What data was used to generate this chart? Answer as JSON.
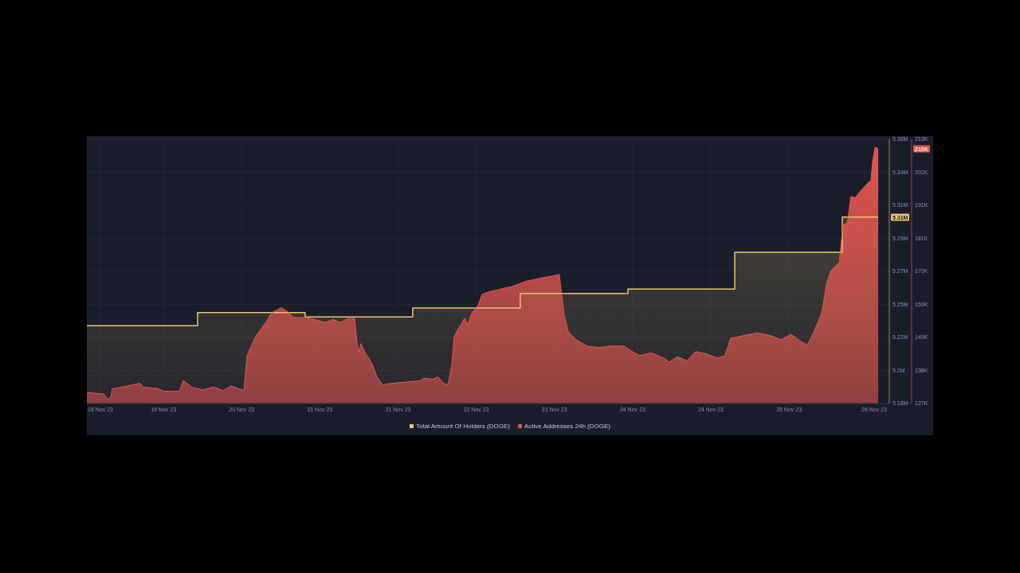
{
  "chart_data": {
    "type": "area",
    "xlim": [
      "--11-18T17:00",
      "--11-26T17:05"
    ],
    "xticks": [
      {
        "value": "--11-18T20:15",
        "label": "18 Nov 23"
      },
      {
        "value": "--11-19T11:20",
        "label": "19 Nov 23"
      },
      {
        "value": "--11-20T06:03",
        "label": "20 Nov 23"
      },
      {
        "value": "--11-21T00:46",
        "label": "21 Nov 23"
      },
      {
        "value": "--11-21T19:29",
        "label": "21 Nov 23"
      },
      {
        "value": "--11-22T14:12",
        "label": "22 Nov 23"
      },
      {
        "value": "--11-23T08:55",
        "label": "23 Nov 23"
      },
      {
        "value": "--11-24T03:38",
        "label": "24 Nov 23"
      },
      {
        "value": "--11-24T22:21",
        "label": "24 Nov 23"
      },
      {
        "value": "--11-25T17:04",
        "label": "25 Nov 23"
      },
      {
        "value": "--11-26T13:27",
        "label": "26 Nov 23"
      }
    ],
    "ylim": [
      5180000,
      5360000
    ],
    "yticks": [
      {
        "value": 5180000,
        "label": "5.18M"
      },
      {
        "value": 5202500,
        "label": "5.2M"
      },
      {
        "value": 5225000,
        "label": "5.22M"
      },
      {
        "value": 5247500,
        "label": "5.25M"
      },
      {
        "value": 5270000,
        "label": "5.27M"
      },
      {
        "value": 5292500,
        "label": "5.29M"
      },
      {
        "value": 5315000,
        "label": "5.31M"
      },
      {
        "value": 5337500,
        "label": "5.34M"
      },
      {
        "value": 5360000,
        "label": "5.36M"
      }
    ],
    "y2lim": [
      127000,
      213000
    ],
    "y2ticks": [
      {
        "value": 127000,
        "label": "127K"
      },
      {
        "value": 137750,
        "label": "138K"
      },
      {
        "value": 148500,
        "label": "149K"
      },
      {
        "value": 159250,
        "label": "159K"
      },
      {
        "value": 170000,
        "label": "170K"
      },
      {
        "value": 180750,
        "label": "181K"
      },
      {
        "value": 191500,
        "label": "191K"
      },
      {
        "value": 202250,
        "label": "202K"
      },
      {
        "value": 213000,
        "label": "213K"
      }
    ],
    "series": [
      {
        "name": "Total Amount Of Holders (DOGE)",
        "color": "#e9c46a",
        "x": [
          "--11-18T17:00",
          "--11-19T19:30",
          "--11-19T19:30",
          "--11-20T21:15",
          "--11-20T21:15",
          "--11-21T23:00",
          "--11-21T23:00",
          "--11-23T00:45",
          "--11-23T00:45",
          "--11-24T02:30",
          "--11-24T02:30",
          "--11-25T04:05",
          "--11-25T04:05",
          "--11-26T05:50",
          "--11-26T05:50",
          "--11-26T14:25"
        ],
        "values": [
          5233000,
          5233000,
          5242000,
          5242000,
          5239000,
          5239000,
          5245000,
          5245000,
          5255000,
          5255000,
          5258000,
          5258000,
          5283000,
          5283000,
          5307000,
          5307000
        ]
      },
      {
        "name": "Active Addresses 24h (DOGE)",
        "axis": "y2",
        "color": "#e0564f",
        "x": [
          "--11-18T17:00",
          "--11-18T21:00",
          "--11-18T22:00",
          "--11-18T22:45",
          "--11-18T23:05",
          "--11-19T02:45",
          "--11-19T05:45",
          "--11-19T06:30",
          "--11-19T10:00",
          "--11-19T11:20",
          "--11-19T15:10",
          "--11-19T16:05",
          "--11-19T18:10",
          "--11-19T20:50",
          "--11-19T23:20",
          "--11-20T01:35",
          "--11-20T03:30",
          "--11-20T06:35",
          "--11-20T07:20",
          "--11-20T08:30",
          "--11-20T09:25",
          "--11-20T10:45",
          "--11-20T12:05",
          "--11-20T13:15",
          "--11-20T15:30",
          "--11-20T17:05",
          "--11-20T18:25",
          "--11-20T21:40",
          "--11-20T23:35",
          "--11-21T02:00",
          "--11-21T03:55",
          "--11-21T05:50",
          "--11-21T07:20",
          "--11-21T09:05",
          "--11-21T09:40",
          "--11-21T10:00",
          "--11-21T10:35",
          "--11-21T11:35",
          "--11-21T13:15",
          "--11-21T14:25",
          "--11-21T15:45",
          "--11-21T18:15",
          "--11-21T21:30",
          "--11-22T00:45",
          "--11-22T01:40",
          "--11-22T03:45",
          "--11-22T05:05",
          "--11-22T06:25",
          "--11-22T07:25",
          "--11-22T08:20",
          "--11-22T08:55",
          "--11-22T09:55",
          "--11-22T11:25",
          "--11-22T12:10",
          "--11-22T13:10",
          "--11-22T14:40",
          "--11-22T15:35",
          "--11-22T17:10",
          "--11-22T19:50",
          "--11-22T22:50",
          "--11-23T02:05",
          "--11-23T05:20",
          "--11-23T08:25",
          "--11-23T10:05",
          "--11-23T10:40",
          "--11-23T11:15",
          "--11-23T12:15",
          "--11-23T14:05",
          "--11-23T16:45",
          "--11-23T19:15",
          "--11-23T22:30",
          "--11-24T01:35",
          "--11-24T03:30",
          "--11-24T05:25",
          "--11-24T08:05",
          "--11-24T11:05",
          "--11-24T12:25",
          "--11-24T14:20",
          "--11-24T16:40",
          "--11-24T18:45",
          "--11-24T21:25",
          "--11-24T23:55",
          "--11-25T01:45",
          "--11-25T03:05",
          "--11-25T06:10",
          "--11-25T09:25",
          "--11-25T12:40",
          "--11-25T15:10",
          "--11-25T17:35",
          "--11-25T20:15",
          "--11-25T21:25",
          "--11-25T22:45",
          "--11-26T00:40",
          "--11-26T01:15",
          "--11-26T02:00",
          "--11-26T03:10",
          "--11-26T05:05",
          "--11-26T06:00",
          "--11-26T07:00",
          "--11-26T07:55",
          "--11-26T08:55",
          "--11-26T10:15",
          "--11-26T11:35",
          "--11-26T12:40",
          "--11-26T13:05",
          "--11-26T13:40",
          "--11-26T14:25"
        ],
        "values": [
          130600,
          130100,
          128400,
          129100,
          131800,
          132700,
          133600,
          132300,
          131900,
          131000,
          131000,
          134400,
          132300,
          131400,
          132400,
          131200,
          132700,
          131200,
          142600,
          146200,
          148800,
          151300,
          153900,
          156500,
          158200,
          156900,
          155000,
          155000,
          154300,
          153400,
          154300,
          153400,
          154700,
          154700,
          146900,
          143600,
          146500,
          143600,
          140000,
          135700,
          133100,
          133600,
          134000,
          134400,
          135300,
          134900,
          135700,
          133600,
          133100,
          139200,
          148700,
          151300,
          154700,
          152600,
          156500,
          159000,
          162500,
          163300,
          164200,
          165100,
          166800,
          167700,
          168500,
          169000,
          162500,
          155600,
          150400,
          147800,
          145700,
          145200,
          145700,
          145700,
          143900,
          142600,
          143500,
          141800,
          140500,
          142200,
          140900,
          143900,
          143100,
          141800,
          142600,
          148200,
          149100,
          150000,
          149100,
          147800,
          149500,
          146900,
          146100,
          149500,
          155600,
          159000,
          165900,
          170300,
          172900,
          185000,
          185800,
          194400,
          194000,
          196200,
          198300,
          199600,
          205700,
          210400,
          210000
        ]
      }
    ],
    "grid": true,
    "legend": "bottom",
    "annotations": [
      "5.31M",
      "210K"
    ]
  }
}
